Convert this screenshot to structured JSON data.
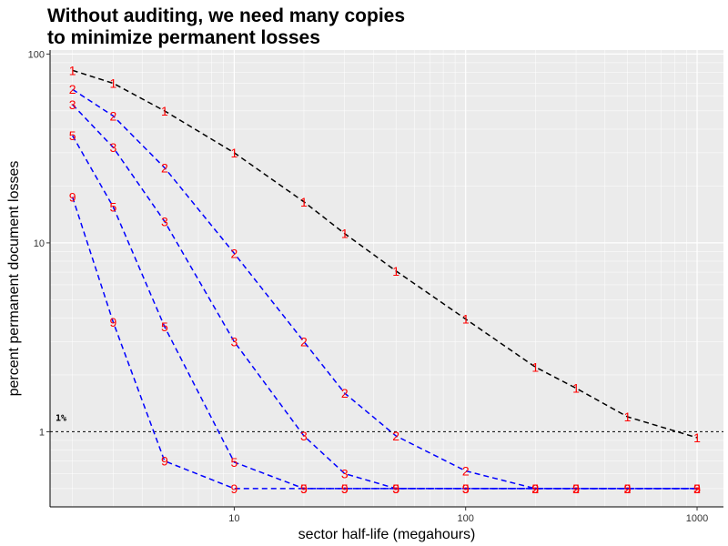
{
  "chart_data": {
    "type": "line",
    "title": "Without auditing, we need many copies\nto minimize permanent losses",
    "xlabel": "sector half-life (megahours)",
    "ylabel": "percent permanent document losses",
    "x_scale": "log",
    "y_scale": "log",
    "xlim": [
      1.6,
      1300
    ],
    "ylim": [
      0.4,
      105
    ],
    "x_ticks": [
      10,
      100,
      1000
    ],
    "x_tick_labels": [
      "10",
      "100",
      "1000"
    ],
    "y_ticks": [
      1,
      10,
      100
    ],
    "y_tick_labels": [
      "1",
      "10",
      "100"
    ],
    "grid": true,
    "background": "#ebebeb",
    "reference_line": {
      "y": 1,
      "label": "1%",
      "color": "#000000",
      "style": "dotted"
    },
    "series": [
      {
        "name": "1",
        "color": "#000000",
        "label_color": "#ff0000",
        "x": [
          2,
          3,
          5,
          10,
          20,
          30,
          50,
          100,
          200,
          300,
          500,
          1000
        ],
        "y": [
          82,
          70,
          50,
          30,
          16.5,
          11.2,
          7.1,
          3.95,
          2.2,
          1.7,
          1.2,
          0.93
        ]
      },
      {
        "name": "2",
        "color": "#0000ff",
        "label_color": "#ff0000",
        "x": [
          2,
          3,
          5,
          10,
          20,
          30,
          50,
          100,
          200,
          300,
          500,
          1000
        ],
        "y": [
          65,
          47,
          25,
          8.8,
          3.0,
          1.6,
          0.95,
          0.62,
          0.5,
          0.5,
          0.5,
          0.5
        ]
      },
      {
        "name": "3",
        "color": "#0000ff",
        "label_color": "#ff0000",
        "x": [
          2,
          3,
          5,
          10,
          20,
          30,
          50,
          100,
          200,
          300,
          500,
          1000
        ],
        "y": [
          54,
          32,
          13,
          3.0,
          0.95,
          0.6,
          0.5,
          0.5,
          0.5,
          0.5,
          0.5,
          0.5
        ]
      },
      {
        "name": "5",
        "color": "#0000ff",
        "label_color": "#ff0000",
        "x": [
          2,
          3,
          5,
          10,
          20,
          30,
          50,
          100,
          200,
          300,
          500,
          1000
        ],
        "y": [
          37,
          15.5,
          3.6,
          0.69,
          0.5,
          0.5,
          0.5,
          0.5,
          0.5,
          0.5,
          0.5,
          0.5
        ]
      },
      {
        "name": "9",
        "color": "#0000ff",
        "label_color": "#ff0000",
        "x": [
          2,
          3,
          5,
          10,
          20,
          30,
          50,
          100,
          200,
          300,
          500,
          1000
        ],
        "y": [
          17.5,
          3.8,
          0.7,
          0.5,
          0.5,
          0.5,
          0.5,
          0.5,
          0.5,
          0.5,
          0.5,
          0.5
        ]
      }
    ]
  }
}
